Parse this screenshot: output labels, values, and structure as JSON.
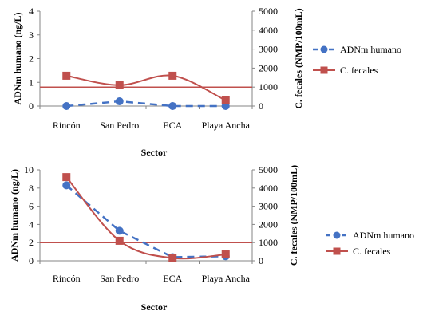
{
  "colors": {
    "blue": "#4472C4",
    "red": "#C0504D",
    "axis": "#868686"
  },
  "chart_data": [
    {
      "type": "line",
      "categories": [
        "Rincón",
        "San Pedro",
        "ECA",
        "Playa Ancha"
      ],
      "series": [
        {
          "name": "ADNm humano",
          "axis": "left",
          "values": [
            0.0,
            0.2,
            0.0,
            0.0
          ],
          "style": "dashed",
          "marker": "circle",
          "color": "#4472C4"
        },
        {
          "name": "C. fecales",
          "axis": "right",
          "values": [
            1600,
            1100,
            1600,
            300
          ],
          "style": "smooth",
          "marker": "square",
          "color": "#C0504D"
        }
      ],
      "reference_line": {
        "axis": "right",
        "value": 1000,
        "color": "#C0504D"
      },
      "xlabel": "Sector",
      "ylabel_left": "ADNm humano (ng/L)",
      "ylabel_right": "C. fecales (NMP/100mL)",
      "ylim_left": [
        0,
        4
      ],
      "yticks_left": [
        "0",
        "1",
        "2",
        "3",
        "4"
      ],
      "ylim_right": [
        0,
        5000
      ],
      "yticks_right": [
        "0",
        "1000",
        "2000",
        "3000",
        "4000",
        "5000"
      ],
      "legend": "right"
    },
    {
      "type": "line",
      "categories": [
        "Rincón",
        "San Pedro",
        "ECA",
        "Playa Ancha"
      ],
      "series": [
        {
          "name": "ADNm humano",
          "axis": "left",
          "values": [
            8.3,
            3.3,
            0.4,
            0.5
          ],
          "style": "dashed",
          "marker": "circle",
          "color": "#4472C4"
        },
        {
          "name": "C. fecales",
          "axis": "right",
          "values": [
            4600,
            1100,
            150,
            350
          ],
          "style": "smooth",
          "marker": "square",
          "color": "#C0504D"
        }
      ],
      "reference_line": {
        "axis": "right",
        "value": 1000,
        "color": "#C0504D"
      },
      "xlabel": "Sector",
      "ylabel_left": "ADNm humano (ng/L)",
      "ylabel_right": "C. fecales (NMP/100mL)",
      "ylim_left": [
        0,
        10
      ],
      "yticks_left": [
        "0",
        "2",
        "4",
        "6",
        "8",
        "10"
      ],
      "ylim_right": [
        0,
        5000
      ],
      "yticks_right": [
        "0",
        "1000",
        "2000",
        "3000",
        "4000",
        "5000"
      ],
      "legend": "right"
    }
  ]
}
